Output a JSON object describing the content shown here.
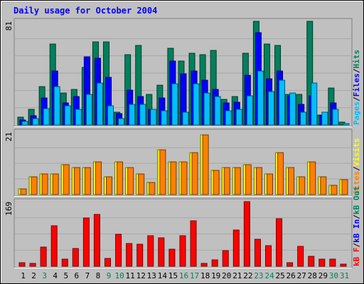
{
  "chart_data": {
    "type": "bar",
    "title": "Daily usage for October 2004",
    "categories": [
      "1",
      "2",
      "3",
      "4",
      "5",
      "6",
      "7",
      "8",
      "9",
      "10",
      "11",
      "12",
      "13",
      "14",
      "15",
      "16",
      "17",
      "18",
      "19",
      "20",
      "21",
      "22",
      "23",
      "24",
      "25",
      "26",
      "27",
      "28",
      "29",
      "30",
      "31"
    ],
    "weekend_days": [
      "3",
      "9",
      "10",
      "16",
      "17",
      "23",
      "24",
      "30",
      "31"
    ],
    "colors": {
      "background": "#c0c0c0",
      "title": "#0000ff",
      "hits": "#00805c",
      "files": "#0000ff",
      "pages": "#00c0ff",
      "visits": "#ffff00",
      "sites": "#ff8000",
      "kb_in": "#0000ff",
      "kb_out": "#00805c",
      "kb_f": "#ff0000",
      "weekday_label": "#000000",
      "weekend_label": "#00805c"
    },
    "panels": [
      {
        "name": "requests",
        "ymax_label": "81",
        "ymax": 81,
        "legend": [
          {
            "text": "Pages",
            "color": "#00c0ff"
          },
          {
            "text": "Files",
            "color": "#0000ff"
          },
          {
            "text": "Hits",
            "color": "#00805c"
          }
        ],
        "series": [
          {
            "name": "Hits",
            "values": [
              6,
              12,
              30,
              63,
              25,
              28,
              45,
              65,
              65,
              10,
              55,
              62,
              24,
              31,
              60,
              50,
              56,
              55,
              58,
              20,
              22,
              56,
              81,
              63,
              62,
              24,
              24,
              81,
              8,
              29,
              2
            ]
          },
          {
            "name": "Files",
            "values": [
              4,
              7,
              21,
              42,
              17,
              22,
              53,
              52,
              37,
              9,
              27,
              22,
              12,
              21,
              50,
              40,
              42,
              35,
              28,
              17,
              18,
              39,
              72,
              36,
              42,
              23,
              16,
              23,
              7,
              17,
              0
            ]
          },
          {
            "name": "Pages",
            "values": [
              3,
              5,
              13,
              30,
              15,
              12,
              24,
              33,
              15,
              5,
              16,
              16,
              12,
              11,
              32,
              10,
              32,
              25,
              22,
              11,
              12,
              23,
              42,
              26,
              35,
              25,
              10,
              33,
              10,
              12,
              1
            ]
          }
        ]
      },
      {
        "name": "visits",
        "ymax_label": "21",
        "ymax": 21,
        "legend": [
          {
            "text": "Sites",
            "color": "#ff8000"
          },
          {
            "text": "Visits",
            "color": "#ffff00"
          }
        ],
        "series": [
          {
            "name": "Visits",
            "values": [
              2,
              6,
              7,
              7,
              10,
              9,
              9,
              11,
              6,
              11,
              9,
              7,
              4,
              15,
              11,
              11,
              14,
              20,
              8,
              9,
              9,
              10,
              9,
              7,
              14,
              9,
              6,
              11,
              6,
              3,
              5
            ]
          },
          {
            "name": "Sites",
            "values": [
              2,
              6,
              7,
              7,
              10,
              9,
              9,
              11,
              6,
              11,
              9,
              7,
              4,
              15,
              11,
              11,
              14,
              20,
              8,
              9,
              9,
              10,
              9,
              7,
              14,
              9,
              6,
              11,
              6,
              3,
              5
            ]
          }
        ]
      },
      {
        "name": "kbytes",
        "ymax_label": "169",
        "ymax": 169,
        "legend": [
          {
            "text": "kB F",
            "color": "#ff0000"
          },
          {
            "text": "kB In",
            "color": "#0000ff"
          },
          {
            "text": "kB Out",
            "color": "#00805c"
          }
        ],
        "series": [
          {
            "name": "kB F",
            "values": [
              9,
              8,
              50,
              106,
              19,
              47,
              126,
              135,
              20,
              83,
              60,
              57,
              80,
              74,
              44,
              80,
              118,
              7,
              16,
              40,
              95,
              169,
              70,
              54,
              125,
              10,
              52,
              26,
              18,
              18,
              6
            ]
          }
        ]
      }
    ]
  }
}
